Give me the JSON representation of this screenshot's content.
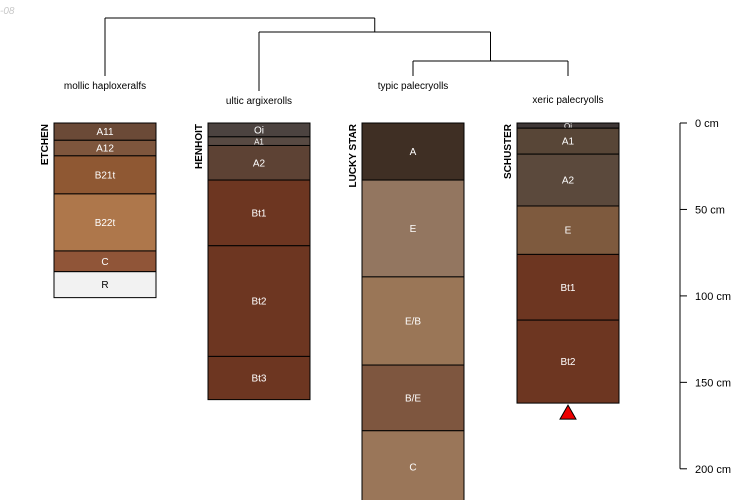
{
  "corner_text": "-08",
  "depth_axis": {
    "ticks": [
      {
        "depth": 0,
        "label": "0 cm"
      },
      {
        "depth": 50,
        "label": "50 cm"
      },
      {
        "depth": 100,
        "label": "100 cm"
      },
      {
        "depth": 150,
        "label": "150 cm"
      },
      {
        "depth": 200,
        "label": "200 cm"
      }
    ]
  },
  "profiles": [
    {
      "id": "etchen",
      "name": "ETCHEN",
      "taxon": "mollic haploxeralfs",
      "horizons": [
        {
          "name": "A11",
          "top": 0,
          "bottom": 10,
          "color": "#6b4a37",
          "text_color": "#ffffff"
        },
        {
          "name": "A12",
          "top": 10,
          "bottom": 19,
          "color": "#7e563d",
          "text_color": "#ffffff"
        },
        {
          "name": "B21t",
          "top": 19,
          "bottom": 41,
          "color": "#8f5833",
          "text_color": "#ffffff"
        },
        {
          "name": "B22t",
          "top": 41,
          "bottom": 74,
          "color": "#ae774b",
          "text_color": "#ffffff"
        },
        {
          "name": "C",
          "top": 74,
          "bottom": 86,
          "color": "#905538",
          "text_color": "#ffffff"
        },
        {
          "name": "R",
          "top": 86,
          "bottom": 101,
          "color": "#f2f2f2",
          "text_color": "#000000"
        }
      ]
    },
    {
      "id": "henhoit",
      "name": "HENHOIT",
      "taxon": "ultic argixerolls",
      "horizons": [
        {
          "name": "Oi",
          "top": 0,
          "bottom": 8,
          "color": "#4c4340",
          "text_color": "#ffffff"
        },
        {
          "name": "A1",
          "top": 8,
          "bottom": 13,
          "color": "#584a43",
          "text_color": "#ffffff"
        },
        {
          "name": "A2",
          "top": 13,
          "bottom": 33,
          "color": "#5d4234",
          "text_color": "#ffffff"
        },
        {
          "name": "Bt1",
          "top": 33,
          "bottom": 71,
          "color": "#6d3621",
          "text_color": "#ffffff"
        },
        {
          "name": "Bt2",
          "top": 71,
          "bottom": 135,
          "color": "#6d3621",
          "text_color": "#ffffff"
        },
        {
          "name": "Bt3",
          "top": 135,
          "bottom": 160,
          "color": "#6d3621",
          "text_color": "#ffffff"
        }
      ]
    },
    {
      "id": "lucky-star",
      "name": "LUCKY STAR",
      "taxon": "typic palecryolls",
      "horizons": [
        {
          "name": "A",
          "top": 0,
          "bottom": 33,
          "color": "#3f2f24",
          "text_color": "#ffffff"
        },
        {
          "name": "E",
          "top": 33,
          "bottom": 89,
          "color": "#937660",
          "text_color": "#ffffff"
        },
        {
          "name": "E/B",
          "top": 89,
          "bottom": 140,
          "color": "#9a7657",
          "text_color": "#ffffff"
        },
        {
          "name": "B/E",
          "top": 140,
          "bottom": 178,
          "color": "#7e563f",
          "text_color": "#ffffff"
        },
        {
          "name": "C",
          "top": 178,
          "bottom": 220,
          "color": "#9a7659",
          "text_color": "#ffffff"
        }
      ]
    },
    {
      "id": "schuster",
      "name": "SCHUSTER",
      "taxon": "xeric palecryolls",
      "horizons": [
        {
          "name": "Oi",
          "top": 0,
          "bottom": 3,
          "color": "#3f3736",
          "text_color": "#ffffff"
        },
        {
          "name": "A1",
          "top": 3,
          "bottom": 18,
          "color": "#584637",
          "text_color": "#ffffff"
        },
        {
          "name": "A2",
          "top": 18,
          "bottom": 48,
          "color": "#5b493c",
          "text_color": "#ffffff"
        },
        {
          "name": "E",
          "top": 48,
          "bottom": 76,
          "color": "#7e5a3e",
          "text_color": "#ffffff"
        },
        {
          "name": "Bt1",
          "top": 76,
          "bottom": 114,
          "color": "#6d3621",
          "text_color": "#ffffff"
        },
        {
          "name": "Bt2",
          "top": 114,
          "bottom": 162,
          "color": "#6d3621",
          "text_color": "#ffffff"
        }
      ],
      "has_bottom_marker": true,
      "bottom_marker_color": "#ee0000"
    }
  ],
  "dendrogram": {
    "merges": [
      {
        "left": "lucky-star",
        "right": "schuster"
      },
      {
        "left": "henhoit",
        "right": "lucky-star+schuster"
      },
      {
        "left": "etchen",
        "right": "henhoit+lucky-star+schuster"
      }
    ]
  }
}
